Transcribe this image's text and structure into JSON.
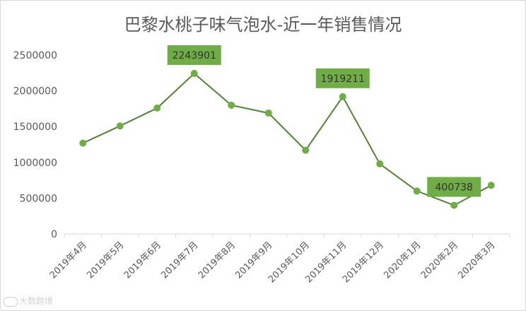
{
  "chart_data": {
    "type": "line",
    "title": "巴黎水桃子味气泡水-近一年销售情况",
    "categories": [
      "2019年4月",
      "2019年5月",
      "2019年6月",
      "2019年7月",
      "2019年8月",
      "2019年9月",
      "2019年10月",
      "2019年11月",
      "2019年12月",
      "2020年1月",
      "2020年2月",
      "2020年3月"
    ],
    "series": [
      {
        "values": [
          1270000,
          1510000,
          1760000,
          2243901,
          1800000,
          1690000,
          1170000,
          1919211,
          980000,
          600000,
          400738,
          680000
        ]
      }
    ],
    "data_labels": [
      {
        "index": 3,
        "text": "2243901"
      },
      {
        "index": 7,
        "text": "1919211"
      },
      {
        "index": 10,
        "text": "400738"
      }
    ],
    "yticks": [
      "0",
      "500000",
      "1000000",
      "1500000",
      "2000000",
      "2500000"
    ],
    "ylim": [
      0,
      2500000
    ],
    "grid": false,
    "legend": "none",
    "colors": {
      "line": "#548235",
      "marker": "#70AD47",
      "label_bg": "#70AD47"
    }
  },
  "watermark": "大数跨境"
}
